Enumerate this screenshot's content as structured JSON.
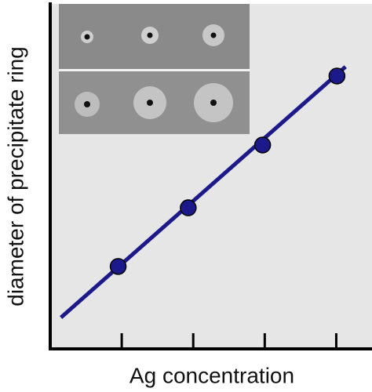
{
  "chart_data": {
    "type": "scatter",
    "x_label": "Ag concentration",
    "y_label": "diameter of precipitate ring",
    "x": [
      0.95,
      1.93,
      2.97,
      4.01
    ],
    "values": [
      2.39,
      4.09,
      5.91,
      7.91
    ],
    "color": "#1c1a8a",
    "fit_line": {
      "x": [
        0.15,
        4.13
      ],
      "y": [
        0.91,
        8.18
      ]
    },
    "xlim": [
      0,
      4.5
    ],
    "ylim": [
      0,
      10
    ],
    "xticks": [
      1,
      2,
      3,
      4
    ],
    "background": "#e6e6e6"
  }
}
